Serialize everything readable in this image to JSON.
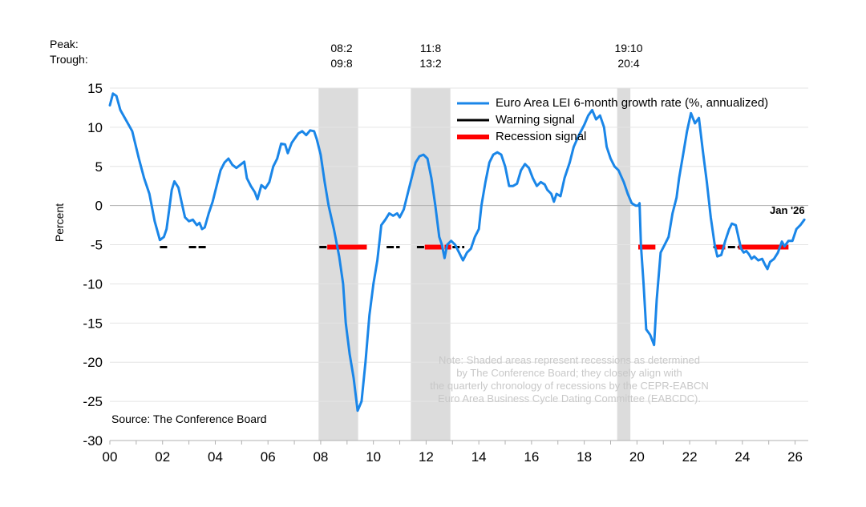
{
  "chart_data": {
    "type": "line",
    "title": "",
    "ylabel": "Percent",
    "xlabel": "",
    "ylim": [
      -30,
      15
    ],
    "yticks": [
      15,
      10,
      5,
      0,
      -5,
      -10,
      -15,
      -20,
      -25,
      -30
    ],
    "xlim": [
      2000,
      2026.5
    ],
    "xticks": [
      {
        "year": 2000,
        "label": "00"
      },
      {
        "year": 2002,
        "label": "02"
      },
      {
        "year": 2004,
        "label": "04"
      },
      {
        "year": 2006,
        "label": "06"
      },
      {
        "year": 2008,
        "label": "08"
      },
      {
        "year": 2010,
        "label": "10"
      },
      {
        "year": 2012,
        "label": "12"
      },
      {
        "year": 2014,
        "label": "14"
      },
      {
        "year": 2016,
        "label": "16"
      },
      {
        "year": 2018,
        "label": "18"
      },
      {
        "year": 2020,
        "label": "20"
      },
      {
        "year": 2022,
        "label": "22"
      },
      {
        "year": 2024,
        "label": "24"
      },
      {
        "year": 2026,
        "label": "26"
      }
    ],
    "peak_label": "Peak:",
    "trough_label": "Trough:",
    "recessions": [
      {
        "start": 2007.92,
        "end": 2009.42,
        "peak": "08:2",
        "trough": "09:8"
      },
      {
        "start": 2011.42,
        "end": 2012.92,
        "peak": "11:8",
        "trough": "13:2"
      },
      {
        "start": 2019.25,
        "end": 2019.75,
        "peak": "19:10",
        "trough": "20:4"
      }
    ],
    "series": [
      {
        "name": "Euro Area LEI 6-month growth rate (%, annualized)",
        "color": "#1a86e8",
        "points": [
          [
            2000.0,
            12.8
          ],
          [
            2000.12,
            14.3
          ],
          [
            2000.25,
            14.0
          ],
          [
            2000.4,
            12.2
          ],
          [
            2000.6,
            11.0
          ],
          [
            2000.85,
            9.5
          ],
          [
            2001.1,
            6.0
          ],
          [
            2001.3,
            3.5
          ],
          [
            2001.5,
            1.5
          ],
          [
            2001.7,
            -2.0
          ],
          [
            2001.9,
            -4.4
          ],
          [
            2002.05,
            -4.0
          ],
          [
            2002.15,
            -3.0
          ],
          [
            2002.25,
            -0.5
          ],
          [
            2002.35,
            2.0
          ],
          [
            2002.45,
            3.1
          ],
          [
            2002.6,
            2.3
          ],
          [
            2002.75,
            0.0
          ],
          [
            2002.85,
            -1.5
          ],
          [
            2003.0,
            -2.0
          ],
          [
            2003.15,
            -1.8
          ],
          [
            2003.3,
            -2.5
          ],
          [
            2003.4,
            -2.2
          ],
          [
            2003.5,
            -3.0
          ],
          [
            2003.6,
            -2.8
          ],
          [
            2003.75,
            -1.0
          ],
          [
            2003.9,
            0.5
          ],
          [
            2004.05,
            2.5
          ],
          [
            2004.2,
            4.5
          ],
          [
            2004.35,
            5.5
          ],
          [
            2004.5,
            6.0
          ],
          [
            2004.65,
            5.2
          ],
          [
            2004.8,
            4.8
          ],
          [
            2004.95,
            5.2
          ],
          [
            2005.1,
            5.6
          ],
          [
            2005.2,
            3.5
          ],
          [
            2005.35,
            2.5
          ],
          [
            2005.5,
            1.7
          ],
          [
            2005.6,
            0.8
          ],
          [
            2005.75,
            2.6
          ],
          [
            2005.9,
            2.2
          ],
          [
            2006.05,
            3.0
          ],
          [
            2006.2,
            5.0
          ],
          [
            2006.35,
            6.0
          ],
          [
            2006.5,
            7.9
          ],
          [
            2006.65,
            7.8
          ],
          [
            2006.75,
            6.7
          ],
          [
            2006.9,
            8.0
          ],
          [
            2007.0,
            8.5
          ],
          [
            2007.15,
            9.2
          ],
          [
            2007.3,
            9.5
          ],
          [
            2007.45,
            9.0
          ],
          [
            2007.6,
            9.6
          ],
          [
            2007.75,
            9.5
          ],
          [
            2007.85,
            8.5
          ],
          [
            2008.0,
            6.5
          ],
          [
            2008.15,
            3.0
          ],
          [
            2008.3,
            0.0
          ],
          [
            2008.5,
            -3.0
          ],
          [
            2008.7,
            -6.5
          ],
          [
            2008.85,
            -10.0
          ],
          [
            2008.95,
            -15.0
          ],
          [
            2009.1,
            -19.0
          ],
          [
            2009.25,
            -22.0
          ],
          [
            2009.4,
            -26.2
          ],
          [
            2009.55,
            -25.0
          ],
          [
            2009.7,
            -20.0
          ],
          [
            2009.85,
            -14.0
          ],
          [
            2010.0,
            -10.0
          ],
          [
            2010.15,
            -7.0
          ],
          [
            2010.3,
            -2.5
          ],
          [
            2010.45,
            -1.8
          ],
          [
            2010.6,
            -1.0
          ],
          [
            2010.75,
            -1.3
          ],
          [
            2010.9,
            -1.0
          ],
          [
            2011.0,
            -1.5
          ],
          [
            2011.15,
            -0.5
          ],
          [
            2011.3,
            1.5
          ],
          [
            2011.45,
            3.5
          ],
          [
            2011.6,
            5.5
          ],
          [
            2011.75,
            6.3
          ],
          [
            2011.9,
            6.5
          ],
          [
            2012.05,
            6.0
          ],
          [
            2012.2,
            3.5
          ],
          [
            2012.35,
            0.0
          ],
          [
            2012.5,
            -4.0
          ],
          [
            2012.6,
            -5.0
          ],
          [
            2012.7,
            -6.7
          ],
          [
            2012.8,
            -5.0
          ],
          [
            2012.95,
            -4.5
          ],
          [
            2013.1,
            -5.0
          ],
          [
            2013.25,
            -6.0
          ],
          [
            2013.4,
            -7.0
          ],
          [
            2013.55,
            -6.0
          ],
          [
            2013.7,
            -5.5
          ],
          [
            2013.85,
            -4.0
          ],
          [
            2014.0,
            -3.0
          ],
          [
            2014.1,
            0.0
          ],
          [
            2014.25,
            3.0
          ],
          [
            2014.4,
            5.5
          ],
          [
            2014.55,
            6.5
          ],
          [
            2014.7,
            6.8
          ],
          [
            2014.85,
            6.5
          ],
          [
            2015.0,
            5.0
          ],
          [
            2015.15,
            2.5
          ],
          [
            2015.3,
            2.5
          ],
          [
            2015.45,
            2.8
          ],
          [
            2015.6,
            4.5
          ],
          [
            2015.75,
            5.3
          ],
          [
            2015.9,
            4.8
          ],
          [
            2016.05,
            3.5
          ],
          [
            2016.2,
            2.5
          ],
          [
            2016.35,
            3.0
          ],
          [
            2016.5,
            2.7
          ],
          [
            2016.6,
            2.0
          ],
          [
            2016.75,
            1.5
          ],
          [
            2016.85,
            0.5
          ],
          [
            2016.95,
            1.5
          ],
          [
            2017.1,
            1.2
          ],
          [
            2017.25,
            3.5
          ],
          [
            2017.45,
            5.5
          ],
          [
            2017.6,
            7.5
          ],
          [
            2017.8,
            9.0
          ],
          [
            2018.0,
            10.3
          ],
          [
            2018.15,
            11.5
          ],
          [
            2018.3,
            12.2
          ],
          [
            2018.45,
            11.0
          ],
          [
            2018.6,
            11.5
          ],
          [
            2018.75,
            10.0
          ],
          [
            2018.85,
            7.5
          ],
          [
            2019.0,
            6.0
          ],
          [
            2019.15,
            5.0
          ],
          [
            2019.3,
            4.5
          ],
          [
            2019.5,
            3.0
          ],
          [
            2019.65,
            1.5
          ],
          [
            2019.8,
            0.3
          ],
          [
            2019.95,
            0.0
          ],
          [
            2020.05,
            0.0
          ],
          [
            2020.1,
            0.3
          ],
          [
            2020.15,
            -5.0
          ],
          [
            2020.25,
            -10.0
          ],
          [
            2020.35,
            -15.8
          ],
          [
            2020.5,
            -16.5
          ],
          [
            2020.65,
            -17.8
          ],
          [
            2020.75,
            -12.0
          ],
          [
            2020.9,
            -6.0
          ],
          [
            2021.05,
            -5.0
          ],
          [
            2021.2,
            -4.0
          ],
          [
            2021.35,
            -1.0
          ],
          [
            2021.5,
            1.0
          ],
          [
            2021.6,
            3.5
          ],
          [
            2021.75,
            6.5
          ],
          [
            2021.9,
            9.5
          ],
          [
            2022.05,
            11.8
          ],
          [
            2022.2,
            10.5
          ],
          [
            2022.35,
            11.2
          ],
          [
            2022.5,
            7.0
          ],
          [
            2022.65,
            3.0
          ],
          [
            2022.8,
            -1.5
          ],
          [
            2022.95,
            -5.0
          ],
          [
            2023.05,
            -6.5
          ],
          [
            2023.2,
            -6.3
          ],
          [
            2023.35,
            -4.5
          ],
          [
            2023.5,
            -3.0
          ],
          [
            2023.6,
            -2.3
          ],
          [
            2023.75,
            -2.5
          ],
          [
            2023.85,
            -4.0
          ],
          [
            2023.95,
            -5.5
          ],
          [
            2024.05,
            -6.0
          ],
          [
            2024.15,
            -5.8
          ],
          [
            2024.25,
            -6.2
          ],
          [
            2024.35,
            -6.8
          ],
          [
            2024.45,
            -6.5
          ],
          [
            2024.6,
            -7.0
          ],
          [
            2024.75,
            -6.8
          ],
          [
            2024.85,
            -7.5
          ],
          [
            2024.95,
            -8.1
          ],
          [
            2025.05,
            -7.2
          ],
          [
            2025.2,
            -6.8
          ],
          [
            2025.35,
            -6.0
          ],
          [
            2025.5,
            -4.6
          ],
          [
            2025.6,
            -5.2
          ],
          [
            2025.75,
            -4.5
          ],
          [
            2025.9,
            -4.5
          ],
          [
            2026.05,
            -3.0
          ],
          [
            2026.2,
            -2.5
          ],
          [
            2026.35,
            -1.8
          ]
        ]
      },
      {
        "name": "Warning signal",
        "color": "#000000",
        "level": -5.3,
        "segments": [
          [
            2001.9,
            2002.2
          ],
          [
            2003.0,
            2003.7
          ],
          [
            2007.95,
            2008.25
          ],
          [
            2010.5,
            2011.0
          ],
          [
            2011.65,
            2011.95
          ],
          [
            2013.0,
            2013.45
          ],
          [
            2022.9,
            2023.2
          ],
          [
            2023.45,
            2023.85
          ]
        ]
      },
      {
        "name": "Recession signal",
        "color": "#ff0000",
        "level": -5.3,
        "segments": [
          [
            2008.25,
            2009.75
          ],
          [
            2011.95,
            2012.65
          ],
          [
            2012.7,
            2012.95
          ],
          [
            2020.05,
            2020.7
          ],
          [
            2022.95,
            2023.35
          ],
          [
            2023.85,
            2025.75
          ]
        ]
      }
    ],
    "annotations": {
      "end_label": "Jan '26",
      "source": "Source: The Conference Board",
      "note": [
        "Note: Shaded areas represent recessions as determined",
        "by The Conference Board; they closely align with",
        "the quarterly chronology of recessions by the CEPR-EABCN",
        "Euro Area Business Cycle Dating Committee (EABCDC)."
      ]
    }
  }
}
